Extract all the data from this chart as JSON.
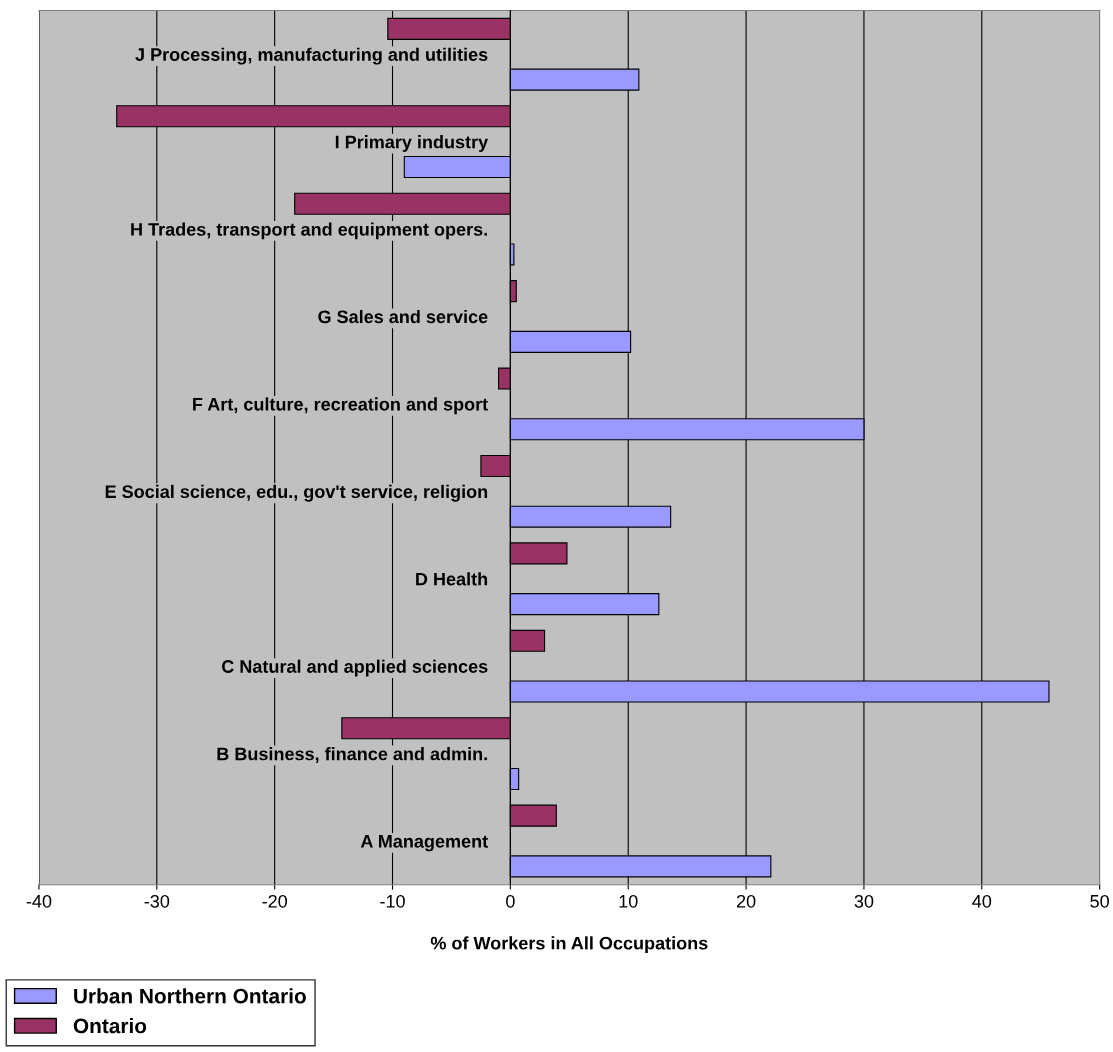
{
  "chart_data": {
    "type": "bar",
    "orientation": "horizontal",
    "xlabel": "% of Workers in All Occupations",
    "categories": [
      "J Processing, manufacturing and utilities",
      "I Primary industry",
      "H Trades, transport and equipment opers.",
      "G Sales and service",
      "F Art, culture, recreation and sport",
      "E Social science, edu., gov't service, religion",
      "D Health",
      "C Natural and applied sciences",
      "B Business, finance and admin.",
      "A Management"
    ],
    "series": [
      {
        "name": "Urban Northern Ontario",
        "color": "#9999ff",
        "values": [
          10.9,
          -9.0,
          0.3,
          10.2,
          30.0,
          13.6,
          12.6,
          45.7,
          0.7,
          22.1
        ]
      },
      {
        "name": "Ontario",
        "color": "#993366",
        "values": [
          -10.4,
          -33.4,
          -18.3,
          0.5,
          -1.0,
          -2.5,
          4.8,
          2.9,
          -14.3,
          3.9
        ]
      }
    ],
    "xlim": [
      -40,
      50
    ],
    "xticks": [
      -40,
      -30,
      -20,
      -10,
      0,
      10,
      20,
      30,
      40,
      50
    ],
    "grid": "x",
    "legend": "bottom left"
  }
}
